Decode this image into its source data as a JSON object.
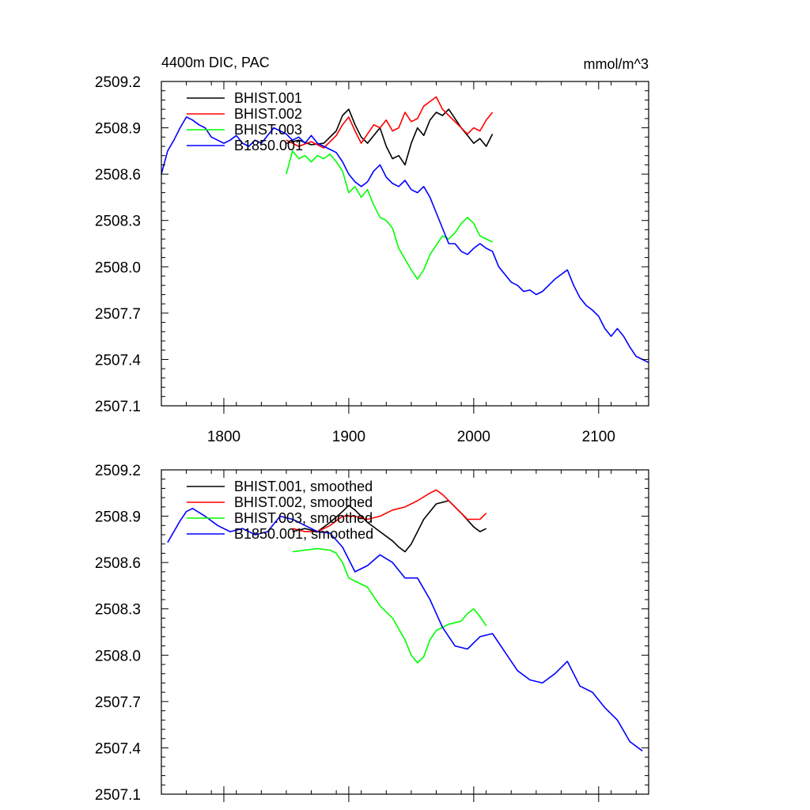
{
  "chart_data": [
    {
      "type": "line",
      "title": "4400m DIC, PAC",
      "units_label": "mmol/m^3",
      "xlim": [
        1750,
        2140
      ],
      "ylim": [
        2507.1,
        2509.2
      ],
      "x_ticks": [
        1800,
        1900,
        2000,
        2100
      ],
      "x_tick_labels": [
        "1800",
        "1900",
        "2000",
        "2100"
      ],
      "y_ticks": [
        2507.1,
        2507.4,
        2507.7,
        2508.0,
        2508.3,
        2508.6,
        2508.9,
        2509.2
      ],
      "y_tick_labels": [
        "2507.1",
        "2507.4",
        "2507.7",
        "2508.0",
        "2508.3",
        "2508.6",
        "2508.9",
        "2509.2"
      ],
      "legend_position": "top-left",
      "series": [
        {
          "name": "BHIST.001",
          "color": "#000000",
          "x": [
            1850,
            1860,
            1870,
            1880,
            1890,
            1895,
            1900,
            1905,
            1910,
            1915,
            1920,
            1925,
            1930,
            1935,
            1940,
            1945,
            1950,
            1955,
            1960,
            1965,
            1970,
            1975,
            1980,
            1985,
            1990,
            1995,
            2000,
            2005,
            2010,
            2015
          ],
          "y": [
            2508.8,
            2508.82,
            2508.79,
            2508.8,
            2508.88,
            2508.98,
            2509.02,
            2508.92,
            2508.84,
            2508.8,
            2508.85,
            2508.9,
            2508.78,
            2508.7,
            2508.72,
            2508.66,
            2508.8,
            2508.9,
            2508.85,
            2508.95,
            2509.0,
            2508.98,
            2509.02,
            2508.96,
            2508.9,
            2508.85,
            2508.8,
            2508.83,
            2508.78,
            2508.86
          ]
        },
        {
          "name": "BHIST.002",
          "color": "#ff0000",
          "x": [
            1850,
            1860,
            1870,
            1880,
            1890,
            1895,
            1900,
            1905,
            1910,
            1915,
            1920,
            1925,
            1930,
            1935,
            1940,
            1945,
            1950,
            1955,
            1960,
            1965,
            1970,
            1975,
            1980,
            1985,
            1990,
            1995,
            2000,
            2005,
            2010,
            2015
          ],
          "y": [
            2508.82,
            2508.78,
            2508.81,
            2508.77,
            2508.85,
            2508.92,
            2508.97,
            2508.88,
            2508.8,
            2508.86,
            2508.92,
            2508.9,
            2508.95,
            2508.88,
            2508.9,
            2509.0,
            2508.94,
            2508.96,
            2509.04,
            2509.07,
            2509.1,
            2509.02,
            2508.98,
            2508.94,
            2508.9,
            2508.86,
            2508.9,
            2508.88,
            2508.95,
            2509.0
          ]
        },
        {
          "name": "BHIST.003",
          "color": "#00ff00",
          "x": [
            1850,
            1855,
            1860,
            1865,
            1870,
            1875,
            1880,
            1885,
            1890,
            1895,
            1900,
            1905,
            1910,
            1915,
            1920,
            1925,
            1930,
            1935,
            1940,
            1945,
            1950,
            1955,
            1960,
            1965,
            1970,
            1975,
            1980,
            1985,
            1990,
            1995,
            2000,
            2005,
            2010,
            2015
          ],
          "y": [
            2508.6,
            2508.75,
            2508.7,
            2508.72,
            2508.68,
            2508.72,
            2508.7,
            2508.73,
            2508.68,
            2508.62,
            2508.48,
            2508.52,
            2508.45,
            2508.5,
            2508.4,
            2508.32,
            2508.3,
            2508.25,
            2508.12,
            2508.05,
            2507.98,
            2507.92,
            2507.98,
            2508.08,
            2508.14,
            2508.2,
            2508.18,
            2508.22,
            2508.28,
            2508.32,
            2508.28,
            2508.2,
            2508.18,
            2508.16
          ]
        },
        {
          "name": "B1850.001",
          "color": "#0000ff",
          "x": [
            1750,
            1755,
            1760,
            1765,
            1770,
            1775,
            1780,
            1785,
            1790,
            1795,
            1800,
            1805,
            1810,
            1815,
            1820,
            1825,
            1830,
            1835,
            1840,
            1845,
            1850,
            1855,
            1860,
            1865,
            1870,
            1875,
            1880,
            1885,
            1890,
            1895,
            1900,
            1905,
            1910,
            1915,
            1920,
            1925,
            1930,
            1935,
            1940,
            1945,
            1950,
            1955,
            1960,
            1965,
            1970,
            1975,
            1980,
            1985,
            1990,
            1995,
            2000,
            2005,
            2010,
            2015,
            2020,
            2025,
            2030,
            2035,
            2040,
            2045,
            2050,
            2055,
            2060,
            2065,
            2070,
            2075,
            2080,
            2085,
            2090,
            2095,
            2100,
            2105,
            2110,
            2115,
            2120,
            2125,
            2130,
            2135,
            2140
          ],
          "y": [
            2508.6,
            2508.75,
            2508.82,
            2508.9,
            2508.97,
            2508.95,
            2508.92,
            2508.9,
            2508.84,
            2508.82,
            2508.8,
            2508.82,
            2508.85,
            2508.8,
            2508.78,
            2508.82,
            2508.8,
            2508.85,
            2508.9,
            2508.88,
            2508.86,
            2508.82,
            2508.84,
            2508.8,
            2508.85,
            2508.8,
            2508.78,
            2508.76,
            2508.74,
            2508.68,
            2508.6,
            2508.55,
            2508.52,
            2508.55,
            2508.62,
            2508.66,
            2508.58,
            2508.54,
            2508.52,
            2508.56,
            2508.5,
            2508.48,
            2508.52,
            2508.45,
            2508.35,
            2508.25,
            2508.15,
            2508.15,
            2508.1,
            2508.08,
            2508.12,
            2508.15,
            2508.12,
            2508.1,
            2508.0,
            2507.95,
            2507.9,
            2507.88,
            2507.84,
            2507.85,
            2507.82,
            2507.84,
            2507.88,
            2507.92,
            2507.95,
            2507.98,
            2507.88,
            2507.8,
            2507.75,
            2507.72,
            2507.68,
            2507.6,
            2507.55,
            2507.6,
            2507.55,
            2507.48,
            2507.42,
            2507.4,
            2507.38
          ]
        }
      ]
    },
    {
      "type": "line",
      "xlim": [
        1750,
        2140
      ],
      "ylim": [
        2507.1,
        2509.2
      ],
      "x_ticks": [
        1800,
        1900,
        2000,
        2100
      ],
      "y_ticks": [
        2507.1,
        2507.4,
        2507.7,
        2508.0,
        2508.3,
        2508.6,
        2508.9,
        2509.2
      ],
      "y_tick_labels": [
        "2507.1",
        "2507.4",
        "2507.7",
        "2508.0",
        "2508.3",
        "2508.6",
        "2508.9",
        "2509.2"
      ],
      "legend_position": "top-left",
      "series": [
        {
          "name": "BHIST.001, smoothed",
          "color": "#000000",
          "x": [
            1855,
            1865,
            1875,
            1885,
            1895,
            1900,
            1905,
            1915,
            1925,
            1935,
            1940,
            1945,
            1950,
            1960,
            1970,
            1980,
            1990,
            2000,
            2005,
            2010
          ],
          "y": [
            2508.8,
            2508.82,
            2508.8,
            2508.86,
            2508.93,
            2508.97,
            2508.94,
            2508.86,
            2508.8,
            2508.74,
            2508.7,
            2508.67,
            2508.72,
            2508.88,
            2508.98,
            2509.0,
            2508.92,
            2508.83,
            2508.8,
            2508.82
          ]
        },
        {
          "name": "BHIST.002, smoothed",
          "color": "#ff0000",
          "x": [
            1855,
            1865,
            1875,
            1885,
            1895,
            1905,
            1915,
            1925,
            1935,
            1945,
            1955,
            1965,
            1970,
            1975,
            1985,
            1995,
            2005,
            2010
          ],
          "y": [
            2508.82,
            2508.8,
            2508.8,
            2508.84,
            2508.9,
            2508.9,
            2508.88,
            2508.9,
            2508.94,
            2508.96,
            2509.0,
            2509.05,
            2509.07,
            2509.04,
            2508.96,
            2508.88,
            2508.88,
            2508.92
          ]
        },
        {
          "name": "BHIST.003, smoothed",
          "color": "#00ff00",
          "x": [
            1855,
            1865,
            1875,
            1885,
            1890,
            1895,
            1900,
            1905,
            1915,
            1925,
            1935,
            1945,
            1950,
            1955,
            1960,
            1965,
            1970,
            1980,
            1990,
            1995,
            2000,
            2005,
            2010
          ],
          "y": [
            2508.67,
            2508.68,
            2508.69,
            2508.68,
            2508.66,
            2508.6,
            2508.5,
            2508.48,
            2508.44,
            2508.32,
            2508.24,
            2508.1,
            2508.0,
            2507.95,
            2507.99,
            2508.1,
            2508.16,
            2508.2,
            2508.22,
            2508.27,
            2508.3,
            2508.25,
            2508.19
          ]
        },
        {
          "name": "B1850.001, smoothed",
          "color": "#0000ff",
          "x": [
            1755,
            1765,
            1770,
            1775,
            1785,
            1795,
            1805,
            1815,
            1825,
            1835,
            1845,
            1855,
            1865,
            1875,
            1885,
            1895,
            1905,
            1915,
            1925,
            1935,
            1945,
            1955,
            1965,
            1975,
            1985,
            1995,
            2005,
            2015,
            2025,
            2035,
            2045,
            2055,
            2065,
            2075,
            2085,
            2095,
            2105,
            2115,
            2125,
            2135
          ],
          "y": [
            2508.73,
            2508.87,
            2508.93,
            2508.95,
            2508.9,
            2508.84,
            2508.8,
            2508.82,
            2508.78,
            2508.8,
            2508.9,
            2508.88,
            2508.84,
            2508.8,
            2508.79,
            2508.7,
            2508.54,
            2508.58,
            2508.65,
            2508.6,
            2508.5,
            2508.5,
            2508.36,
            2508.18,
            2508.06,
            2508.04,
            2508.12,
            2508.14,
            2508.02,
            2507.9,
            2507.84,
            2507.82,
            2507.88,
            2507.96,
            2507.8,
            2507.76,
            2507.66,
            2507.58,
            2507.44,
            2507.38
          ]
        }
      ]
    }
  ]
}
